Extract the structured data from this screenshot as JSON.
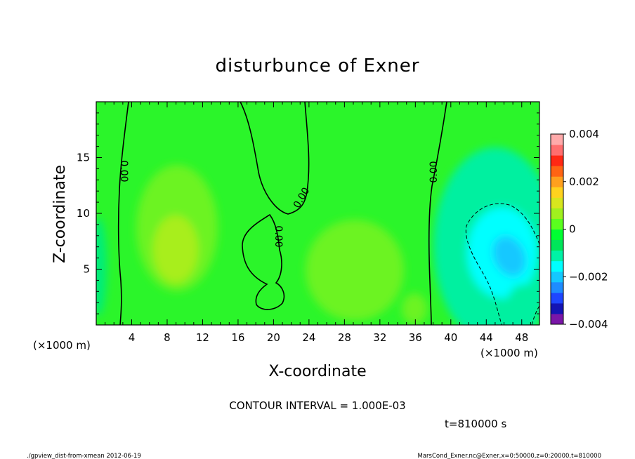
{
  "chart_data": {
    "type": "heatmap",
    "title": "disturbunce of Exner",
    "xlabel": "X-coordinate",
    "ylabel": "Z-coordinate",
    "x_unit": "(×1000 m)",
    "y_unit": "(×1000 m)",
    "xlim": [
      0,
      50
    ],
    "ylim": [
      0,
      20
    ],
    "x_ticks": [
      4,
      8,
      12,
      16,
      20,
      24,
      28,
      32,
      36,
      40,
      44,
      48
    ],
    "y_ticks": [
      5,
      10,
      15
    ],
    "colorbar": {
      "min": -0.004,
      "max": 0.004,
      "step": 0.0005,
      "tick_values": [
        0.004,
        0.002,
        0,
        -0.002,
        -0.004
      ],
      "tick_labels": [
        "0.004",
        "0.002",
        "0",
        "−0.002",
        "−0.004"
      ],
      "colors": [
        "#7a16a8",
        "#1414b4",
        "#1e46ff",
        "#1e8cff",
        "#14c8ff",
        "#00ffff",
        "#00f2a6",
        "#00e65a",
        "#00ff32",
        "#5aff1e",
        "#a0f01e",
        "#d7e61e",
        "#ffd21e",
        "#ffa01e",
        "#ff6414",
        "#ff2814",
        "#ff6e6e",
        "#ffaaaa"
      ]
    },
    "contour_interval": "CONTOUR INTERVAL = 1.000E-03",
    "contour_labels": [
      "0.00",
      "0.00",
      "0.00",
      "0.00"
    ],
    "features": [
      {
        "x": 9.5,
        "z": 8,
        "value": 0.0015,
        "desc": "positive max"
      },
      {
        "x": 31,
        "z": 6.5,
        "value": 0.0012,
        "desc": "positive max"
      },
      {
        "x": 46,
        "z": 6.5,
        "value": -0.0025,
        "desc": "negative min"
      }
    ],
    "time": "t=810000 s"
  },
  "footer": {
    "script": "./gpview_dist-from-xmean   2012-06-19",
    "source": "MarsCond_Exner.nc@Exner,x=0:50000,z=0:20000,t=810000"
  }
}
